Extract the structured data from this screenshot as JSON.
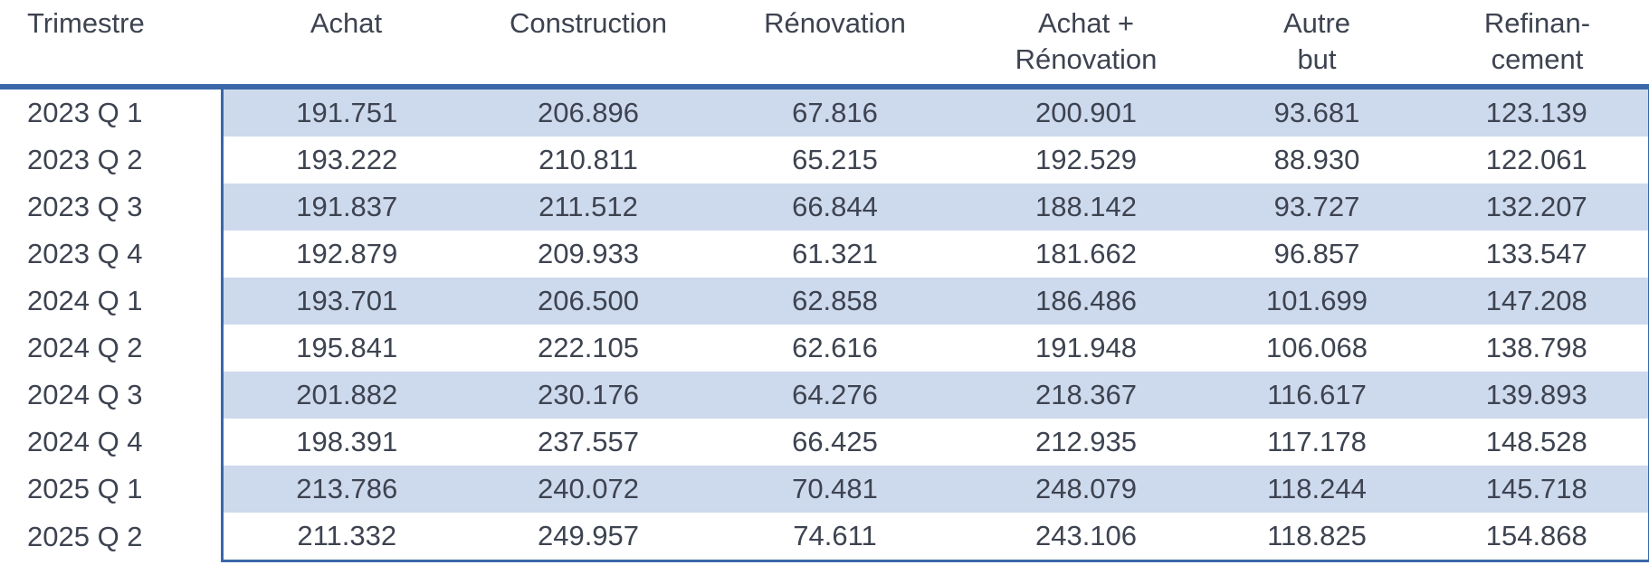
{
  "colors": {
    "band": "#cdd9ec",
    "border_blue": "#3a67a8",
    "text": "#3d4350",
    "background": "#ffffff"
  },
  "table": {
    "headers": [
      {
        "line1": "Trimestre",
        "line2": ""
      },
      {
        "line1": "Achat",
        "line2": ""
      },
      {
        "line1": "Construction",
        "line2": ""
      },
      {
        "line1": "Rénovation",
        "line2": ""
      },
      {
        "line1": "Achat +",
        "line2": "Rénovation"
      },
      {
        "line1": "Autre",
        "line2": "but"
      },
      {
        "line1": "Refinan-",
        "line2": "cement"
      }
    ]
  },
  "chart_data": {
    "type": "table",
    "columns": [
      "Trimestre",
      "Achat",
      "Construction",
      "Rénovation",
      "Achat + Rénovation",
      "Autre but",
      "Refinan-cement"
    ],
    "rows": [
      [
        "2023 Q 1",
        "191.751",
        "206.896",
        "67.816",
        "200.901",
        "93.681",
        "123.139"
      ],
      [
        "2023 Q 2",
        "193.222",
        "210.811",
        "65.215",
        "192.529",
        "88.930",
        "122.061"
      ],
      [
        "2023 Q 3",
        "191.837",
        "211.512",
        "66.844",
        "188.142",
        "93.727",
        "132.207"
      ],
      [
        "2023 Q 4",
        "192.879",
        "209.933",
        "61.321",
        "181.662",
        "96.857",
        "133.547"
      ],
      [
        "2024 Q 1",
        "193.701",
        "206.500",
        "62.858",
        "186.486",
        "101.699",
        "147.208"
      ],
      [
        "2024 Q 2",
        "195.841",
        "222.105",
        "62.616",
        "191.948",
        "106.068",
        "138.798"
      ],
      [
        "2024 Q 3",
        "201.882",
        "230.176",
        "64.276",
        "218.367",
        "116.617",
        "139.893"
      ],
      [
        "2024 Q 4",
        "198.391",
        "237.557",
        "66.425",
        "212.935",
        "117.178",
        "148.528"
      ],
      [
        "2025 Q 1",
        "213.786",
        "240.072",
        "70.481",
        "248.079",
        "118.244",
        "145.718"
      ],
      [
        "2025 Q 2",
        "211.332",
        "249.957",
        "74.611",
        "243.106",
        "118.825",
        "154.868"
      ]
    ]
  }
}
